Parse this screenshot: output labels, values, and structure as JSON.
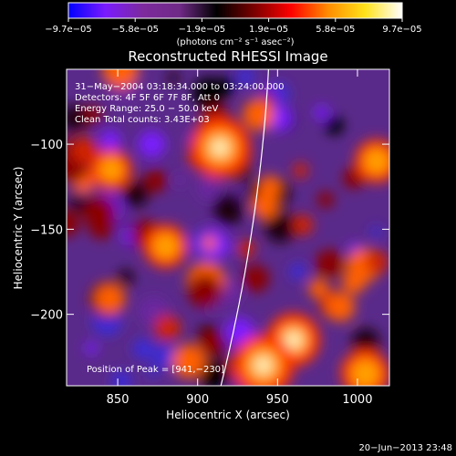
{
  "chart_data": {
    "type": "heatmap",
    "title": "Reconstructed RHESSI Image",
    "xlabel": "Heliocentric X (arcsec)",
    "ylabel": "Heliocentric Y (arcsec)",
    "xlim": [
      818,
      1020
    ],
    "ylim": [
      -242,
      -56
    ],
    "x_ticks": [
      850,
      900,
      950,
      1000
    ],
    "x_tick_labels": [
      "850",
      "900",
      "950",
      "1000"
    ],
    "y_ticks": [
      -100,
      -150,
      -200
    ],
    "y_tick_labels": [
      "−100",
      "−150",
      "−200"
    ],
    "colorbar": {
      "min": -9.7e-05,
      "max": 9.7e-05,
      "tick_labels": [
        "−9.7e−05",
        "−5.8e−05",
        "−1.9e−05",
        "1.9e−05",
        "5.8e−05",
        "9.7e−05"
      ],
      "units": "(photons cm⁻² s⁻¹ asec⁻²)",
      "colormap": [
        "#0000ff",
        "#7a1bff",
        "#7d2a9e",
        "#6f2a86",
        "#000000",
        "#7a0000",
        "#ff0000",
        "#ff8c00",
        "#ffe21a",
        "#ffffff"
      ]
    },
    "annotations": [
      "31−May−2004 03:18:34.000 to 03:24:00.000",
      "Detectors: 4F 5F 6F 7F 8F, Att 0",
      "Energy Range: 25.0 − 50.0 keV",
      "Clean    Total counts: 3.43E+03"
    ],
    "peak_label": "Position of Peak = [941,−230]",
    "bright_sources": [
      {
        "x": 914,
        "y": -102,
        "intensity": 9.7e-05
      },
      {
        "x": 846,
        "y": -115,
        "intensity": 5.5e-05
      },
      {
        "x": 880,
        "y": -160,
        "intensity": 6e-05
      },
      {
        "x": 960,
        "y": -215,
        "intensity": 8e-05
      },
      {
        "x": 941,
        "y": -230,
        "intensity": 9.7e-05
      },
      {
        "x": 1005,
        "y": -235,
        "intensity": 7e-05
      },
      {
        "x": 1012,
        "y": -110,
        "intensity": 6e-05
      }
    ]
  },
  "footer": {
    "date_stamp": "20−Jun−2013 23:48"
  }
}
